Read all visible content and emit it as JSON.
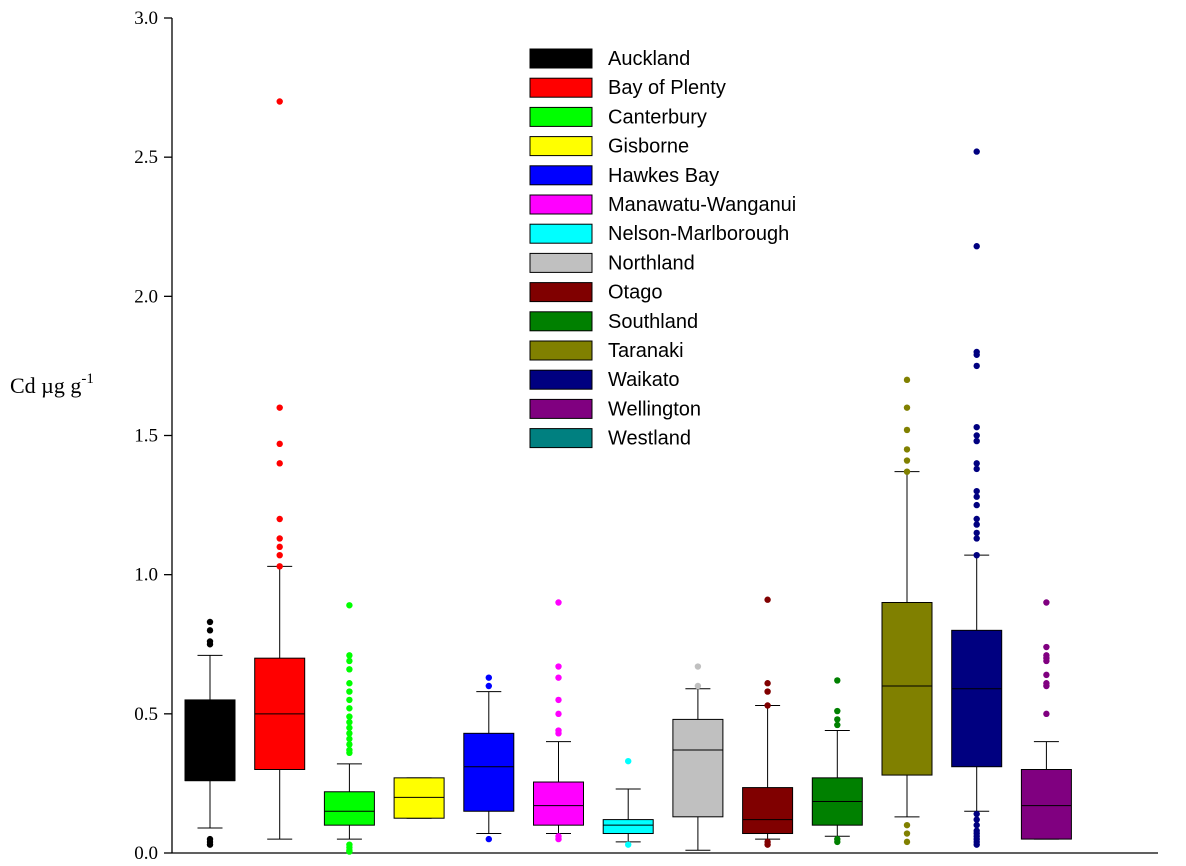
{
  "chart_data": {
    "type": "boxplot",
    "ylabel": "Cd µg g",
    "ylabel_sup": "-1",
    "ylim": [
      0,
      3.0
    ],
    "yticks": [
      "0.0",
      "0.5",
      "1.0",
      "1.5",
      "2.0",
      "2.5",
      "3.0"
    ],
    "legend_position": "top-center",
    "grid": false,
    "series": [
      {
        "name": "Auckland",
        "color": "#000000",
        "whisker_low": 0.09,
        "q1": 0.26,
        "median": 0.26,
        "q3": 0.55,
        "whisker_high": 0.71,
        "outliers": [
          0.83,
          0.8,
          0.76,
          0.75,
          0.05,
          0.04,
          0.03
        ]
      },
      {
        "name": "Bay of Plenty",
        "color": "#ff0000",
        "whisker_low": 0.05,
        "q1": 0.3,
        "median": 0.5,
        "q3": 0.7,
        "whisker_high": 1.03,
        "outliers": [
          2.7,
          1.6,
          1.47,
          1.4,
          1.2,
          1.13,
          1.1,
          1.07,
          1.03
        ]
      },
      {
        "name": "Canterbury",
        "color": "#00ff00",
        "whisker_low": 0.05,
        "q1": 0.1,
        "median": 0.15,
        "q3": 0.22,
        "whisker_high": 0.32,
        "outliers": [
          0.89,
          0.71,
          0.69,
          0.66,
          0.61,
          0.58,
          0.55,
          0.52,
          0.49,
          0.47,
          0.45,
          0.43,
          0.41,
          0.39,
          0.37,
          0.36,
          0.03,
          0.02,
          0.01,
          0.005
        ]
      },
      {
        "name": "Gisborne",
        "color": "#ffff00",
        "whisker_low": 0.125,
        "q1": 0.125,
        "median": 0.2,
        "q3": 0.27,
        "whisker_high": 0.27,
        "outliers": []
      },
      {
        "name": "Hawkes Bay",
        "color": "#0000ff",
        "whisker_low": 0.07,
        "q1": 0.15,
        "median": 0.31,
        "q3": 0.43,
        "whisker_high": 0.58,
        "outliers": [
          0.63,
          0.6,
          0.05
        ]
      },
      {
        "name": "Manawatu-Wanganui",
        "color": "#ff00ff",
        "whisker_low": 0.07,
        "q1": 0.1,
        "median": 0.17,
        "q3": 0.255,
        "whisker_high": 0.4,
        "outliers": [
          0.9,
          0.67,
          0.63,
          0.55,
          0.5,
          0.44,
          0.43,
          0.06,
          0.05
        ]
      },
      {
        "name": "Nelson-Marlborough",
        "color": "#00ffff",
        "whisker_low": 0.04,
        "q1": 0.07,
        "median": 0.1,
        "q3": 0.12,
        "whisker_high": 0.23,
        "outliers": [
          0.33,
          0.03
        ]
      },
      {
        "name": "Northland",
        "color": "#c0c0c0",
        "whisker_low": 0.01,
        "q1": 0.13,
        "median": 0.37,
        "q3": 0.48,
        "whisker_high": 0.59,
        "outliers": [
          0.67,
          0.6
        ]
      },
      {
        "name": "Otago",
        "color": "#800000",
        "whisker_low": 0.05,
        "q1": 0.07,
        "median": 0.12,
        "q3": 0.235,
        "whisker_high": 0.53,
        "outliers": [
          0.91,
          0.61,
          0.58,
          0.53,
          0.04,
          0.03
        ]
      },
      {
        "name": "Southland",
        "color": "#008000",
        "whisker_low": 0.06,
        "q1": 0.1,
        "median": 0.185,
        "q3": 0.27,
        "whisker_high": 0.44,
        "outliers": [
          0.62,
          0.51,
          0.48,
          0.46,
          0.05,
          0.04
        ]
      },
      {
        "name": "Taranaki",
        "color": "#808000",
        "whisker_low": 0.13,
        "q1": 0.28,
        "median": 0.6,
        "q3": 0.9,
        "whisker_high": 1.37,
        "outliers": [
          1.7,
          1.6,
          1.52,
          1.45,
          1.41,
          1.37,
          0.1,
          0.07,
          0.04
        ]
      },
      {
        "name": "Waikato",
        "color": "#000080",
        "whisker_low": 0.15,
        "q1": 0.31,
        "median": 0.59,
        "q3": 0.8,
        "whisker_high": 1.07,
        "outliers": [
          2.52,
          2.18,
          1.8,
          1.79,
          1.75,
          1.53,
          1.5,
          1.48,
          1.4,
          1.38,
          1.3,
          1.28,
          1.25,
          1.2,
          1.18,
          1.15,
          1.13,
          1.07,
          0.14,
          0.12,
          0.1,
          0.08,
          0.07,
          0.06,
          0.05,
          0.04,
          0.03
        ]
      },
      {
        "name": "Wellington",
        "color": "#800080",
        "whisker_low": 0.05,
        "q1": 0.05,
        "median": 0.17,
        "q3": 0.3,
        "whisker_high": 0.4,
        "outliers": [
          0.9,
          0.74,
          0.71,
          0.7,
          0.69,
          0.64,
          0.61,
          0.6,
          0.5
        ]
      },
      {
        "name": "Westland",
        "color": "#008080",
        "in_legend_only": true
      }
    ]
  }
}
